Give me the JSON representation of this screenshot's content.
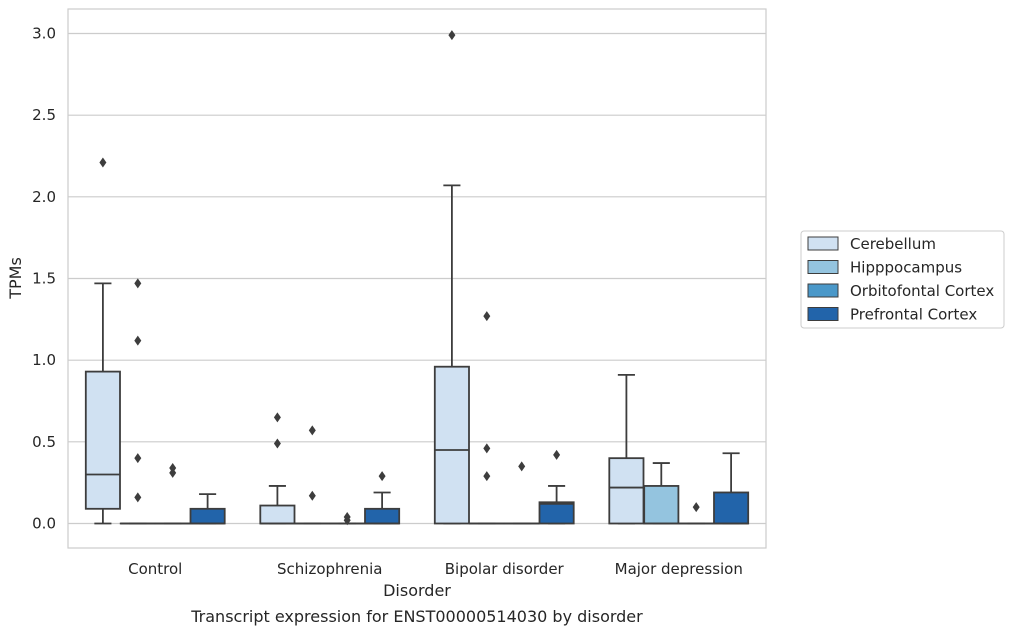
{
  "chart_data": {
    "type": "box",
    "title": "",
    "caption": "Transcript expression for ENST00000514030 by disorder",
    "xlabel": "Disorder",
    "ylabel": "TPMs",
    "ylim": [
      -0.15,
      3.15
    ],
    "yticks": [
      0.0,
      0.5,
      1.0,
      1.5,
      2.0,
      2.5,
      3.0
    ],
    "ytick_labels": [
      "0.0",
      "0.5",
      "1.0",
      "1.5",
      "2.0",
      "2.5",
      "3.0"
    ],
    "grid": "horizontal",
    "legend_position": "right",
    "categories": [
      "Control",
      "Schizophrenia",
      "Bipolar disorder",
      "Major depression"
    ],
    "series": [
      {
        "name": "Cerebellum",
        "color": "#d0e1f2",
        "boxes": [
          {
            "min": 0.0,
            "q1": 0.09,
            "median": 0.3,
            "q3": 0.93,
            "max": 1.47,
            "outliers": [
              2.21
            ]
          },
          {
            "min": 0.0,
            "q1": 0.0,
            "median": 0.0,
            "q3": 0.11,
            "max": 0.23,
            "outliers": [
              0.49,
              0.65
            ]
          },
          {
            "min": 0.0,
            "q1": 0.0,
            "median": 0.45,
            "q3": 0.96,
            "max": 2.07,
            "outliers": [
              2.99
            ]
          },
          {
            "min": 0.0,
            "q1": 0.0,
            "median": 0.22,
            "q3": 0.4,
            "max": 0.91,
            "outliers": []
          }
        ]
      },
      {
        "name": "Hipppocampus",
        "color": "#94c4df",
        "boxes": [
          {
            "min": 0.0,
            "q1": 0.0,
            "median": 0.0,
            "q3": 0.0,
            "max": 0.0,
            "outliers": [
              0.16,
              0.4,
              1.12,
              1.47
            ]
          },
          {
            "min": 0.0,
            "q1": 0.0,
            "median": 0.0,
            "q3": 0.0,
            "max": 0.0,
            "outliers": [
              0.17,
              0.57
            ]
          },
          {
            "min": 0.0,
            "q1": 0.0,
            "median": 0.0,
            "q3": 0.0,
            "max": 0.0,
            "outliers": [
              0.29,
              0.46,
              1.27
            ]
          },
          {
            "min": 0.0,
            "q1": 0.0,
            "median": 0.0,
            "q3": 0.23,
            "max": 0.37,
            "outliers": []
          }
        ]
      },
      {
        "name": "Orbitofontal Cortex",
        "color": "#4a98c9",
        "boxes": [
          {
            "min": 0.0,
            "q1": 0.0,
            "median": 0.0,
            "q3": 0.0,
            "max": 0.0,
            "outliers": [
              0.31,
              0.34
            ]
          },
          {
            "min": 0.0,
            "q1": 0.0,
            "median": 0.0,
            "q3": 0.0,
            "max": 0.0,
            "outliers": [
              0.02,
              0.04
            ]
          },
          {
            "min": 0.0,
            "q1": 0.0,
            "median": 0.0,
            "q3": 0.0,
            "max": 0.0,
            "outliers": [
              0.35
            ]
          },
          {
            "min": 0.0,
            "q1": 0.0,
            "median": 0.0,
            "q3": 0.0,
            "max": 0.0,
            "outliers": [
              0.1
            ]
          }
        ]
      },
      {
        "name": "Prefrontal Cortex",
        "color": "#2264aa",
        "boxes": [
          {
            "min": 0.0,
            "q1": 0.0,
            "median": 0.0,
            "q3": 0.09,
            "max": 0.18,
            "outliers": []
          },
          {
            "min": 0.0,
            "q1": 0.0,
            "median": 0.0,
            "q3": 0.09,
            "max": 0.19,
            "outliers": [
              0.29
            ]
          },
          {
            "min": 0.0,
            "q1": 0.0,
            "median": 0.12,
            "q3": 0.13,
            "max": 0.23,
            "outliers": [
              0.42
            ]
          },
          {
            "min": 0.0,
            "q1": 0.0,
            "median": 0.0,
            "q3": 0.19,
            "max": 0.43,
            "outliers": []
          }
        ]
      }
    ]
  }
}
